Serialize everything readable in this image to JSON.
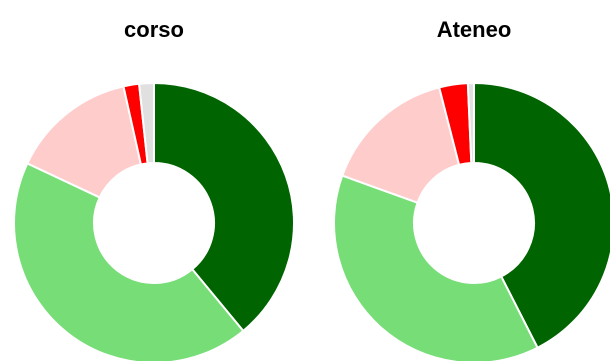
{
  "chart_data": [
    {
      "type": "pie",
      "donut": true,
      "title": "corso",
      "slices": [
        {
          "value": 39.0,
          "color": "#006400"
        },
        {
          "value": 43.0,
          "color": "#77DD77"
        },
        {
          "value": 14.5,
          "color": "#FFCCCC"
        },
        {
          "value": 1.8,
          "color": "#FF0000"
        },
        {
          "value": 1.7,
          "color": "#E0E0E0"
        }
      ]
    },
    {
      "type": "pie",
      "donut": true,
      "title": "Ateneo",
      "slices": [
        {
          "value": 42.5,
          "color": "#006400"
        },
        {
          "value": 38.0,
          "color": "#77DD77"
        },
        {
          "value": 15.5,
          "color": "#FFCCCC"
        },
        {
          "value": 3.3,
          "color": "#FF0000"
        },
        {
          "value": 0.7,
          "color": "#E0E0E0"
        }
      ]
    }
  ]
}
